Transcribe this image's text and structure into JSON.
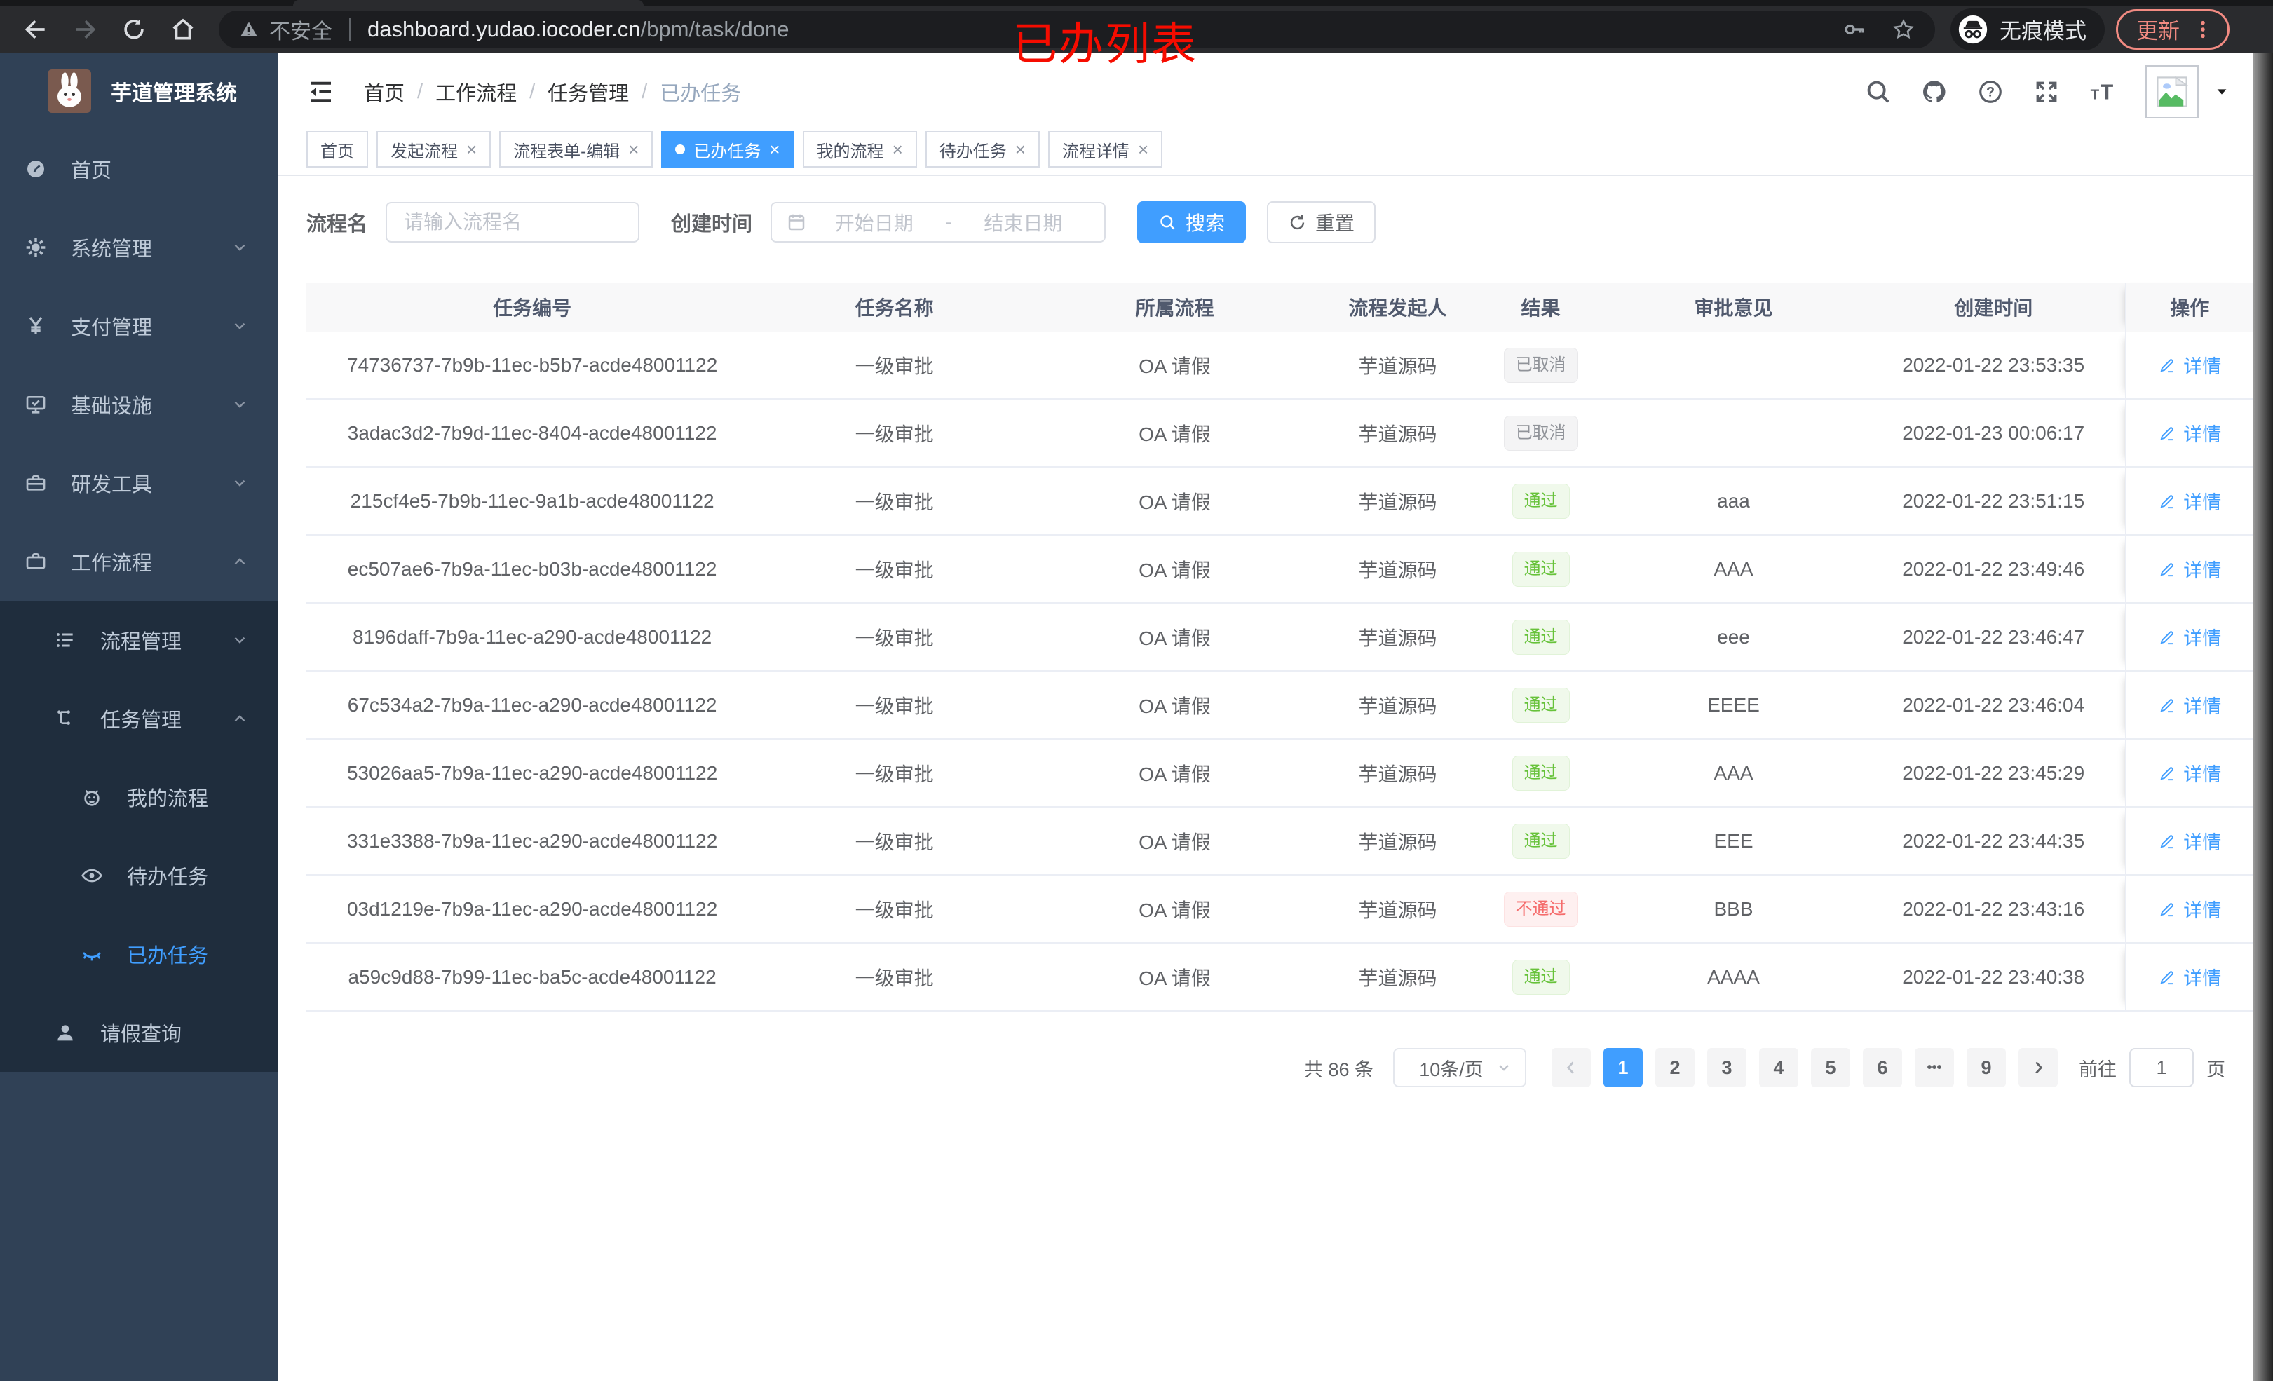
{
  "browser": {
    "security_label": "不安全",
    "url_host": "dashboard.yudao.iocoder.cn",
    "url_path": "/bpm/task/done",
    "incognito_label": "无痕模式",
    "update_label": "更新"
  },
  "annotation": {
    "text": "已办列表",
    "color": "#f60c00"
  },
  "sidebar": {
    "logo_title": "芋道管理系统",
    "menu": [
      {
        "label": "首页",
        "icon": "dashboard-icon",
        "level": 1
      },
      {
        "label": "系统管理",
        "icon": "gear-icon",
        "level": 1,
        "chevron": "down"
      },
      {
        "label": "支付管理",
        "icon": "yen-icon",
        "level": 1,
        "chevron": "down"
      },
      {
        "label": "基础设施",
        "icon": "monitor-icon",
        "level": 1,
        "chevron": "down"
      },
      {
        "label": "研发工具",
        "icon": "toolbox-icon",
        "level": 1,
        "chevron": "down"
      },
      {
        "label": "工作流程",
        "icon": "briefcase-icon",
        "level": 1,
        "chevron": "up"
      },
      {
        "label": "流程管理",
        "icon": "list-icon",
        "level": 2,
        "chevron": "down",
        "submenu": true
      },
      {
        "label": "任务管理",
        "icon": "tree-icon",
        "level": 2,
        "chevron": "up",
        "submenu": true
      },
      {
        "label": "我的流程",
        "icon": "robot-icon",
        "level": 3,
        "submenu": true
      },
      {
        "label": "待办任务",
        "icon": "eye-icon",
        "level": 3,
        "submenu": true
      },
      {
        "label": "已办任务",
        "icon": "eye-closed-icon",
        "level": 3,
        "submenu": true,
        "active": true
      },
      {
        "label": "请假查询",
        "icon": "user-icon",
        "level": 2,
        "submenu": true
      }
    ]
  },
  "header": {
    "breadcrumb": [
      "首页",
      "工作流程",
      "任务管理",
      "已办任务"
    ],
    "icons": [
      "search-icon",
      "github-icon",
      "help-icon",
      "fullscreen-icon",
      "fontsize-icon"
    ]
  },
  "tabs": [
    {
      "label": "首页",
      "closable": false
    },
    {
      "label": "发起流程",
      "closable": true
    },
    {
      "label": "流程表单-编辑",
      "closable": true
    },
    {
      "label": "已办任务",
      "closable": true,
      "active": true
    },
    {
      "label": "我的流程",
      "closable": true
    },
    {
      "label": "待办任务",
      "closable": true
    },
    {
      "label": "流程详情",
      "closable": true
    }
  ],
  "filters": {
    "name_label": "流程名",
    "name_placeholder": "请输入流程名",
    "date_label": "创建时间",
    "date_start_placeholder": "开始日期",
    "date_separator": "-",
    "date_end_placeholder": "结束日期",
    "search_label": "搜索",
    "reset_label": "重置"
  },
  "table": {
    "columns": [
      "任务编号",
      "任务名称",
      "所属流程",
      "流程发起人",
      "结果",
      "审批意见",
      "创建时间",
      "操作"
    ],
    "detail_label": "详情",
    "rows": [
      {
        "id": "74736737-7b9b-11ec-b5b7-acde48001122",
        "name": "一级审批",
        "process": "OA 请假",
        "starter": "芋道源码",
        "result": "已取消",
        "result_type": "info",
        "comment": "",
        "created": "2022-01-22 23:53:35"
      },
      {
        "id": "3adac3d2-7b9d-11ec-8404-acde48001122",
        "name": "一级审批",
        "process": "OA 请假",
        "starter": "芋道源码",
        "result": "已取消",
        "result_type": "info",
        "comment": "",
        "created": "2022-01-23 00:06:17"
      },
      {
        "id": "215cf4e5-7b9b-11ec-9a1b-acde48001122",
        "name": "一级审批",
        "process": "OA 请假",
        "starter": "芋道源码",
        "result": "通过",
        "result_type": "success",
        "comment": "aaa",
        "created": "2022-01-22 23:51:15"
      },
      {
        "id": "ec507ae6-7b9a-11ec-b03b-acde48001122",
        "name": "一级审批",
        "process": "OA 请假",
        "starter": "芋道源码",
        "result": "通过",
        "result_type": "success",
        "comment": "AAA",
        "created": "2022-01-22 23:49:46"
      },
      {
        "id": "8196daff-7b9a-11ec-a290-acde48001122",
        "name": "一级审批",
        "process": "OA 请假",
        "starter": "芋道源码",
        "result": "通过",
        "result_type": "success",
        "comment": "eee",
        "created": "2022-01-22 23:46:47"
      },
      {
        "id": "67c534a2-7b9a-11ec-a290-acde48001122",
        "name": "一级审批",
        "process": "OA 请假",
        "starter": "芋道源码",
        "result": "通过",
        "result_type": "success",
        "comment": "EEEE",
        "created": "2022-01-22 23:46:04"
      },
      {
        "id": "53026aa5-7b9a-11ec-a290-acde48001122",
        "name": "一级审批",
        "process": "OA 请假",
        "starter": "芋道源码",
        "result": "通过",
        "result_type": "success",
        "comment": "AAA",
        "created": "2022-01-22 23:45:29"
      },
      {
        "id": "331e3388-7b9a-11ec-a290-acde48001122",
        "name": "一级审批",
        "process": "OA 请假",
        "starter": "芋道源码",
        "result": "通过",
        "result_type": "success",
        "comment": "EEE",
        "created": "2022-01-22 23:44:35"
      },
      {
        "id": "03d1219e-7b9a-11ec-a290-acde48001122",
        "name": "一级审批",
        "process": "OA 请假",
        "starter": "芋道源码",
        "result": "不通过",
        "result_type": "danger",
        "comment": "BBB",
        "created": "2022-01-22 23:43:16"
      },
      {
        "id": "a59c9d88-7b99-11ec-ba5c-acde48001122",
        "name": "一级审批",
        "process": "OA 请假",
        "starter": "芋道源码",
        "result": "通过",
        "result_type": "success",
        "comment": "AAAA",
        "created": "2022-01-22 23:40:38"
      }
    ]
  },
  "pagination": {
    "total_label": "共 86 条",
    "page_size": "10条/页",
    "pages": [
      {
        "label": "1",
        "active": true
      },
      {
        "label": "2"
      },
      {
        "label": "3"
      },
      {
        "label": "4"
      },
      {
        "label": "5"
      },
      {
        "label": "6"
      },
      {
        "label": "•••",
        "more": true
      },
      {
        "label": "9"
      }
    ],
    "goto_label": "前往",
    "goto_value": "1",
    "goto_suffix": "页"
  },
  "colors": {
    "accent": "#409eff",
    "sidebar_bg": "#304156",
    "submenu_bg": "#1f2d3d",
    "success": "#67c23a",
    "danger": "#f56c6c",
    "info": "#909399"
  }
}
